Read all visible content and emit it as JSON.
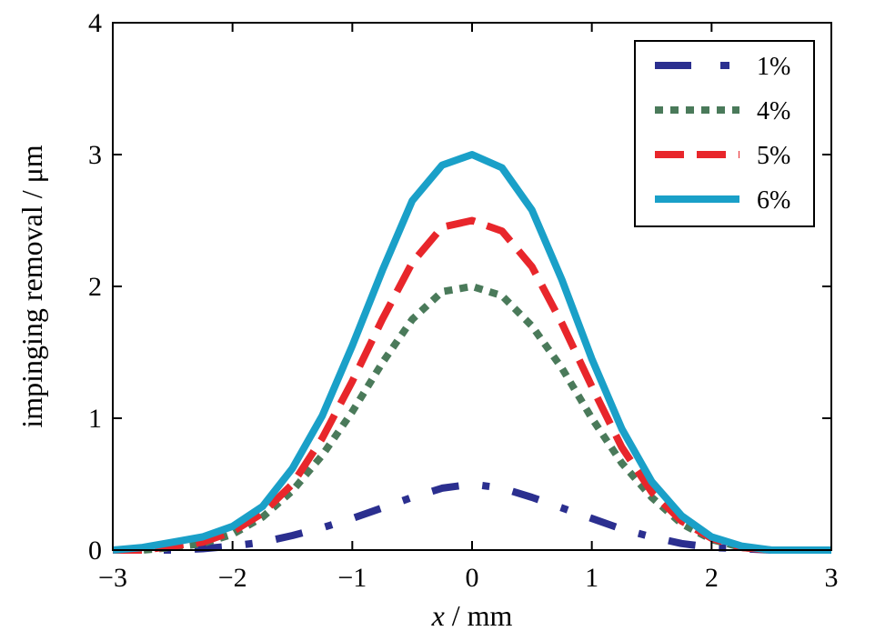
{
  "chart_data": {
    "type": "line",
    "title": "",
    "xlabel_var": "x",
    "xlabel_unit": " / mm",
    "ylabel": "impinging removal / μm",
    "xlim": [
      -3,
      3
    ],
    "ylim": [
      0,
      4
    ],
    "xticks": [
      -3,
      -2,
      -1,
      0,
      1,
      2,
      3
    ],
    "xtick_labels": [
      "−3",
      "−2",
      "−1",
      "0",
      "1",
      "2",
      "3"
    ],
    "yticks": [
      0,
      1,
      2,
      3,
      4
    ],
    "ytick_labels": [
      "0",
      "1",
      "2",
      "3",
      "4"
    ],
    "grid": false,
    "legend_position": "top-right",
    "x": [
      -3.0,
      -2.75,
      -2.5,
      -2.25,
      -2.0,
      -1.75,
      -1.5,
      -1.25,
      -1.0,
      -0.75,
      -0.5,
      -0.25,
      0.0,
      0.25,
      0.5,
      0.75,
      1.0,
      1.25,
      1.5,
      1.75,
      2.0,
      2.25,
      2.5,
      2.75,
      3.0
    ],
    "series": [
      {
        "name": "1%",
        "color": "#2b2f8f",
        "style": "dashdot",
        "values": [
          0,
          0,
          0,
          0.01,
          0.03,
          0.06,
          0.11,
          0.17,
          0.24,
          0.32,
          0.4,
          0.47,
          0.5,
          0.47,
          0.4,
          0.32,
          0.24,
          0.16,
          0.1,
          0.05,
          0.02,
          0.01,
          0,
          0,
          0
        ]
      },
      {
        "name": "4%",
        "color": "#4a7a5a",
        "style": "dotted",
        "values": [
          0,
          0,
          0.02,
          0.05,
          0.12,
          0.25,
          0.45,
          0.72,
          1.05,
          1.42,
          1.75,
          1.96,
          2.0,
          1.93,
          1.7,
          1.38,
          1.0,
          0.66,
          0.4,
          0.2,
          0.08,
          0.02,
          0,
          0,
          0
        ]
      },
      {
        "name": "5%",
        "color": "#e8262b",
        "style": "dashed",
        "values": [
          0,
          0,
          0.03,
          0.06,
          0.14,
          0.28,
          0.5,
          0.85,
          1.28,
          1.75,
          2.18,
          2.45,
          2.5,
          2.42,
          2.15,
          1.72,
          1.24,
          0.78,
          0.44,
          0.22,
          0.09,
          0.02,
          0,
          0,
          0
        ]
      },
      {
        "name": "6%",
        "color": "#1aa0c8",
        "style": "solid",
        "values": [
          0,
          0.02,
          0.06,
          0.1,
          0.18,
          0.33,
          0.62,
          1.02,
          1.55,
          2.12,
          2.65,
          2.92,
          3.0,
          2.9,
          2.58,
          2.05,
          1.45,
          0.92,
          0.52,
          0.26,
          0.1,
          0.03,
          0,
          0,
          0
        ]
      }
    ]
  }
}
